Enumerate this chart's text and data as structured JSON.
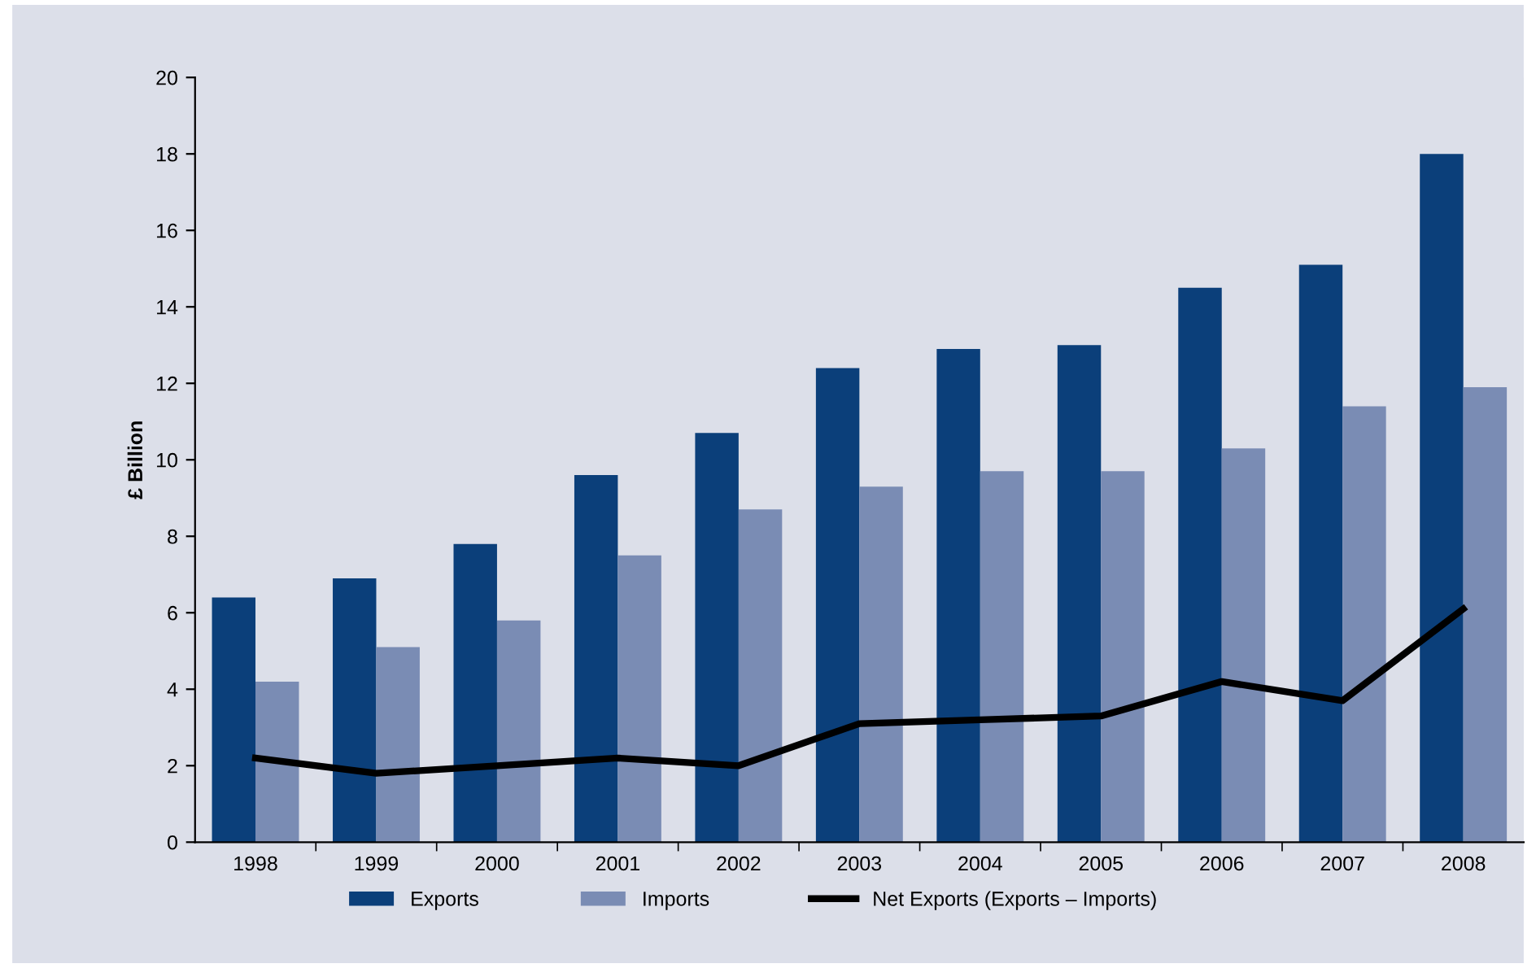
{
  "chart_data": {
    "type": "bar",
    "ylabel": "£ Billion",
    "categories": [
      "1998",
      "1999",
      "2000",
      "2001",
      "2002",
      "2003",
      "2004",
      "2005",
      "2006",
      "2007",
      "2008"
    ],
    "series": [
      {
        "name": "Exports",
        "color": "#0b3f7a",
        "values": [
          6.4,
          6.9,
          7.8,
          9.6,
          10.7,
          12.4,
          12.9,
          13.0,
          14.5,
          15.1,
          18.0
        ]
      },
      {
        "name": "Imports",
        "color": "#7a8cb4",
        "values": [
          4.2,
          5.1,
          5.8,
          7.5,
          8.7,
          9.3,
          9.7,
          9.7,
          10.3,
          11.4,
          11.9
        ]
      },
      {
        "name": "Net Exports (Exports – Imports)",
        "type": "line",
        "color": "#000000",
        "values": [
          2.2,
          1.8,
          2.0,
          2.2,
          2.0,
          3.1,
          3.2,
          3.3,
          4.2,
          3.7,
          6.1
        ]
      }
    ],
    "ylim": [
      0,
      20
    ],
    "yticks": [
      0,
      2,
      4,
      6,
      8,
      10,
      12,
      14,
      16,
      18,
      20
    ],
    "grid": false,
    "legend": "bottom"
  }
}
